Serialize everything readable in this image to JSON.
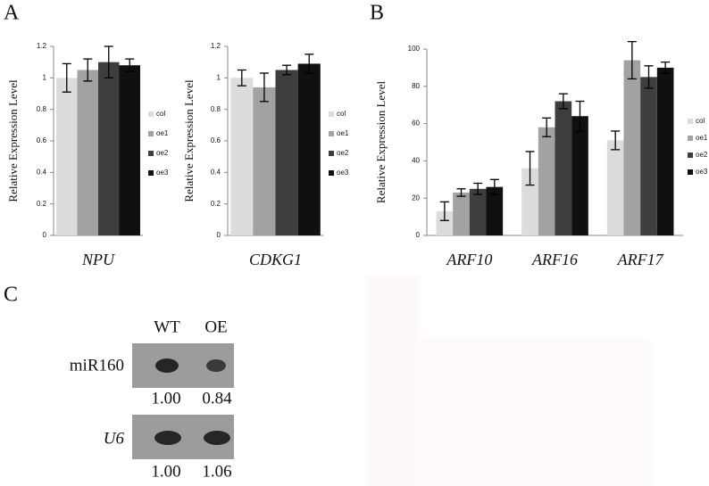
{
  "panels": [
    "A",
    "B",
    "C"
  ],
  "chart_data": [
    {
      "type": "bar",
      "y_label": "Relative Expression Level",
      "categories": [
        "NPU"
      ],
      "ylim": [
        0,
        1.2
      ],
      "yticks": [
        0,
        0.2,
        0.4,
        0.6,
        0.8,
        1,
        1.2
      ],
      "legend": "right",
      "series": [
        {
          "name": "col",
          "color": "#dcdcdc",
          "values": [
            1.0
          ],
          "errors": [
            0.09
          ]
        },
        {
          "name": "oe1",
          "color": "#a2a2a2",
          "values": [
            1.05
          ],
          "errors": [
            0.07
          ]
        },
        {
          "name": "oe2",
          "color": "#3e3e3e",
          "values": [
            1.1
          ],
          "errors": [
            0.1
          ]
        },
        {
          "name": "oe3",
          "color": "#101010",
          "values": [
            1.08
          ],
          "errors": [
            0.04
          ]
        }
      ]
    },
    {
      "type": "bar",
      "y_label": "Relative Expression Level",
      "categories": [
        "CDKG1"
      ],
      "ylim": [
        0,
        1.2
      ],
      "yticks": [
        0,
        0.2,
        0.4,
        0.6,
        0.8,
        1,
        1.2
      ],
      "legend": "right",
      "series": [
        {
          "name": "col",
          "color": "#dcdcdc",
          "values": [
            1.0
          ],
          "errors": [
            0.05
          ]
        },
        {
          "name": "oe1",
          "color": "#a2a2a2",
          "values": [
            0.94
          ],
          "errors": [
            0.09
          ]
        },
        {
          "name": "oe2",
          "color": "#3e3e3e",
          "values": [
            1.05
          ],
          "errors": [
            0.03
          ]
        },
        {
          "name": "oe3",
          "color": "#101010",
          "values": [
            1.09
          ],
          "errors": [
            0.06
          ]
        }
      ]
    },
    {
      "type": "bar",
      "y_label": "Relative Expression Level",
      "categories": [
        "ARF10",
        "ARF16",
        "ARF17"
      ],
      "ylim": [
        0,
        100
      ],
      "yticks": [
        0,
        20,
        40,
        60,
        80,
        100
      ],
      "legend": "right",
      "series": [
        {
          "name": "col",
          "color": "#dcdcdc",
          "values": [
            13,
            36,
            51
          ],
          "errors": [
            5,
            9,
            5
          ]
        },
        {
          "name": "oe1",
          "color": "#a2a2a2",
          "values": [
            23,
            58,
            94
          ],
          "errors": [
            2,
            5,
            10
          ]
        },
        {
          "name": "oe2",
          "color": "#3e3e3e",
          "values": [
            25,
            72,
            85
          ],
          "errors": [
            3,
            4,
            6
          ]
        },
        {
          "name": "oe3",
          "color": "#101010",
          "values": [
            26,
            64,
            90
          ],
          "errors": [
            4,
            8,
            3
          ]
        }
      ]
    }
  ],
  "blot": {
    "columns": [
      "WT",
      "OE"
    ],
    "rows": [
      {
        "label": "miR160",
        "values": [
          "1.00",
          "0.84"
        ]
      },
      {
        "label": "U6",
        "values": [
          "1.00",
          "1.06"
        ]
      }
    ]
  }
}
